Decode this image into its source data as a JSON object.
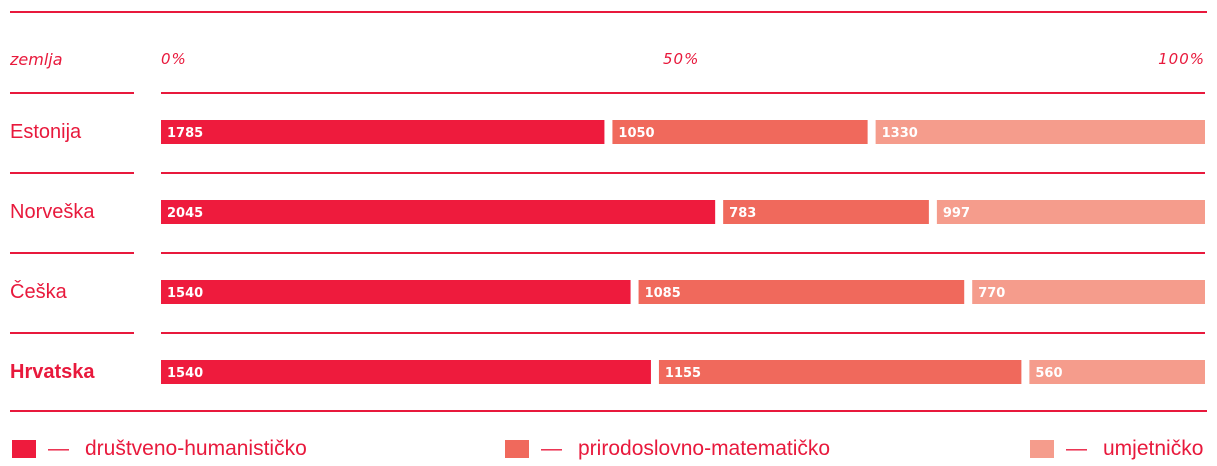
{
  "chart_data": {
    "type": "bar",
    "stacked": "percent",
    "orientation": "horizontal",
    "category_header": "zemlja",
    "ticks": [
      "0%",
      "50%",
      "100%"
    ],
    "categories": [
      "Estonija",
      "Norveška",
      "Češka",
      "Hrvatska"
    ],
    "highlight_category": "Hrvatska",
    "series": [
      {
        "name": "društveno-humanističko",
        "color": "#ee1b3d",
        "values": [
          1785,
          2045,
          1540,
          1540
        ]
      },
      {
        "name": "prirodoslovno-matematičko",
        "color": "#f0695c",
        "values": [
          1050,
          783,
          1085,
          1155
        ]
      },
      {
        "name": "umjetničko",
        "color": "#f59c8c",
        "values": [
          1330,
          997,
          770,
          560
        ]
      }
    ],
    "legend_prefix": "—",
    "legend_position": "bottom"
  }
}
